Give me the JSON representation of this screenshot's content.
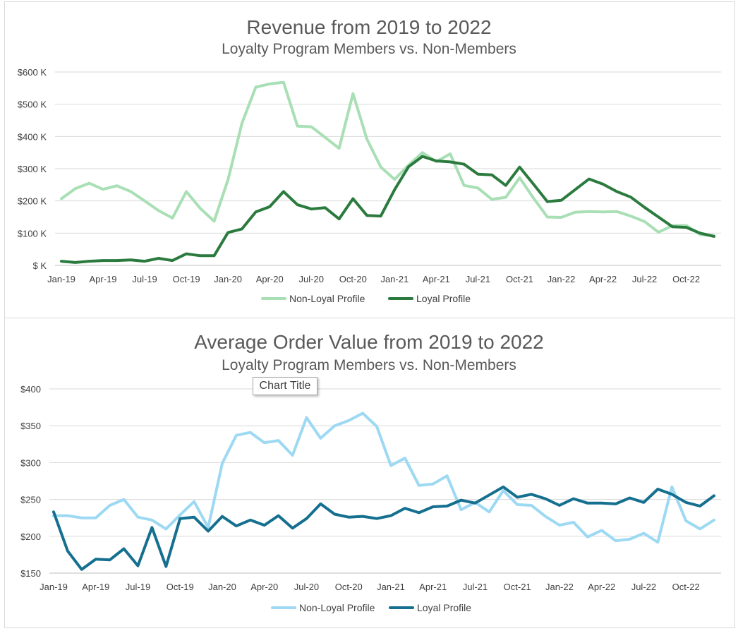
{
  "tooltip": "Chart Title",
  "chart_data": [
    {
      "type": "line",
      "title": "Revenue from 2019 to 2022",
      "subtitle": "Loyalty Program Members vs. Non-Members",
      "ylim": [
        0,
        600000
      ],
      "y_ticks": [
        0,
        100000,
        200000,
        300000,
        400000,
        500000,
        600000
      ],
      "y_tick_labels": [
        "$ K",
        "$100 K",
        "$200 K",
        "$300 K",
        "$400 K",
        "$500 K",
        "$600 K"
      ],
      "x_tick_labels": [
        "Jan-19",
        "Apr-19",
        "Jul-19",
        "Oct-19",
        "Jan-20",
        "Apr-20",
        "Jul-20",
        "Oct-20",
        "Jan-21",
        "Apr-21",
        "Jul-21",
        "Oct-21",
        "Jan-22",
        "Apr-22",
        "Jul-22",
        "Oct-22"
      ],
      "x": [
        "Jan-19",
        "Feb-19",
        "Mar-19",
        "Apr-19",
        "May-19",
        "Jun-19",
        "Jul-19",
        "Aug-19",
        "Sep-19",
        "Oct-19",
        "Nov-19",
        "Dec-19",
        "Jan-20",
        "Feb-20",
        "Mar-20",
        "Apr-20",
        "May-20",
        "Jun-20",
        "Jul-20",
        "Aug-20",
        "Sep-20",
        "Oct-20",
        "Nov-20",
        "Dec-20",
        "Jan-21",
        "Feb-21",
        "Mar-21",
        "Apr-21",
        "May-21",
        "Jun-21",
        "Jul-21",
        "Aug-21",
        "Sep-21",
        "Oct-21",
        "Nov-21",
        "Dec-21",
        "Jan-22",
        "Feb-22",
        "Mar-22",
        "Apr-22",
        "May-22",
        "Jun-22",
        "Jul-22",
        "Aug-22",
        "Sep-22",
        "Oct-22",
        "Nov-22",
        "Dec-22"
      ],
      "grid": true,
      "legend_position": "bottom",
      "series": [
        {
          "name": "Non-Loyal Profile",
          "color": "#a9dfb5",
          "values": [
            207000,
            238000,
            255000,
            236000,
            247000,
            229000,
            200000,
            170000,
            147000,
            229000,
            177000,
            137000,
            266000,
            441000,
            553000,
            563000,
            568000,
            432000,
            430000,
            397000,
            363000,
            533000,
            392000,
            305000,
            267000,
            311000,
            350000,
            322000,
            346000,
            248000,
            240000,
            205000,
            211000,
            272000,
            209000,
            150000,
            149000,
            165000,
            167000,
            166000,
            167000,
            153000,
            136000,
            103000,
            123000,
            124000,
            96000,
            92000
          ]
        },
        {
          "name": "Loyal Profile",
          "color": "#2b7a3e",
          "values": [
            13000,
            9000,
            13000,
            15000,
            15000,
            17000,
            13000,
            22000,
            15000,
            36000,
            30000,
            30000,
            102000,
            113000,
            166000,
            182000,
            229000,
            188000,
            175000,
            179000,
            144000,
            207000,
            155000,
            153000,
            235000,
            306000,
            338000,
            324000,
            321000,
            314000,
            283000,
            281000,
            248000,
            305000,
            252000,
            198000,
            202000,
            235000,
            268000,
            252000,
            229000,
            212000,
            180000,
            150000,
            120000,
            118000,
            100000,
            90000
          ]
        }
      ]
    },
    {
      "type": "line",
      "title": "Average Order Value from 2019 to 2022",
      "subtitle": "Loyalty Program Members vs. Non-Members",
      "ylim": [
        150,
        400
      ],
      "y_ticks": [
        150,
        200,
        250,
        300,
        350,
        400
      ],
      "y_tick_labels": [
        "$150",
        "$200",
        "$250",
        "$300",
        "$350",
        "$400"
      ],
      "x_tick_labels": [
        "Jan-19",
        "Apr-19",
        "Jul-19",
        "Oct-19",
        "Jan-20",
        "Apr-20",
        "Jul-20",
        "Oct-20",
        "Jan-21",
        "Apr-21",
        "Jul-21",
        "Oct-21",
        "Jan-22",
        "Apr-22",
        "Jul-22",
        "Oct-22"
      ],
      "x": [
        "Jan-19",
        "Feb-19",
        "Mar-19",
        "Apr-19",
        "May-19",
        "Jun-19",
        "Jul-19",
        "Aug-19",
        "Sep-19",
        "Oct-19",
        "Nov-19",
        "Dec-19",
        "Jan-20",
        "Feb-20",
        "Mar-20",
        "Apr-20",
        "May-20",
        "Jun-20",
        "Jul-20",
        "Aug-20",
        "Sep-20",
        "Oct-20",
        "Nov-20",
        "Dec-20",
        "Jan-21",
        "Feb-21",
        "Mar-21",
        "Apr-21",
        "May-21",
        "Jun-21",
        "Jul-21",
        "Aug-21",
        "Sep-21",
        "Oct-21",
        "Nov-21",
        "Dec-21",
        "Jan-22",
        "Feb-22",
        "Mar-22",
        "Apr-22",
        "May-22",
        "Jun-22",
        "Jul-22",
        "Aug-22",
        "Sep-22",
        "Oct-22",
        "Nov-22",
        "Dec-22"
      ],
      "grid": true,
      "legend_position": "bottom",
      "series": [
        {
          "name": "Non-Loyal Profile",
          "color": "#9dd9f3",
          "values": [
            228,
            228,
            225,
            225,
            242,
            250,
            226,
            222,
            210,
            229,
            247,
            212,
            299,
            337,
            341,
            327,
            330,
            310,
            361,
            333,
            350,
            357,
            367,
            349,
            296,
            306,
            269,
            271,
            282,
            236,
            246,
            233,
            262,
            243,
            242,
            227,
            215,
            219,
            199,
            208,
            194,
            196,
            204,
            192,
            267,
            221,
            210,
            222
          ]
        },
        {
          "name": "Loyal Profile",
          "color": "#156f8f",
          "values": [
            233,
            180,
            155,
            169,
            168,
            183,
            160,
            212,
            159,
            224,
            226,
            207,
            227,
            214,
            222,
            215,
            228,
            211,
            224,
            244,
            230,
            226,
            227,
            224,
            228,
            238,
            232,
            240,
            241,
            249,
            245,
            256,
            267,
            253,
            257,
            251,
            242,
            251,
            245,
            245,
            244,
            252,
            246,
            264,
            257,
            246,
            241,
            255
          ]
        }
      ]
    }
  ]
}
